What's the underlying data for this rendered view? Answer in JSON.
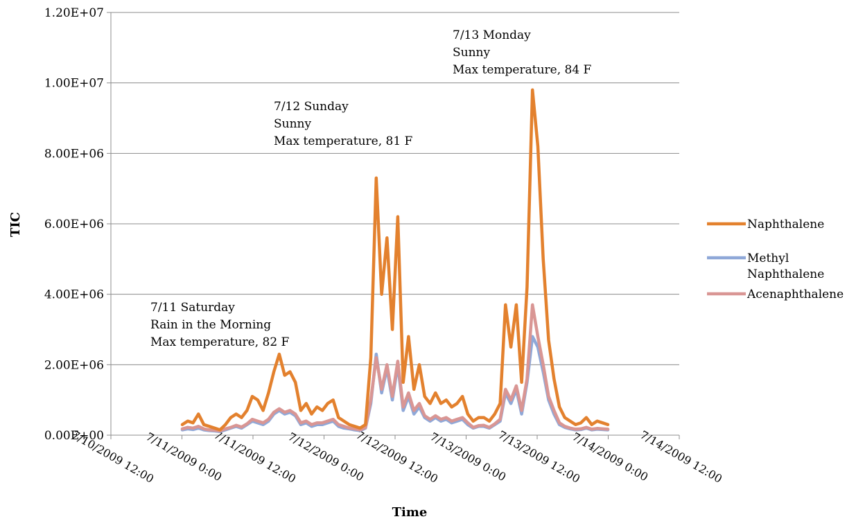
{
  "chart_data": {
    "type": "line",
    "title": "",
    "xlabel": "Time",
    "ylabel": "TIC",
    "ylim": [
      0,
      12000000
    ],
    "yticks": [
      "0.00E+00",
      "2.00E+06",
      "4.00E+06",
      "6.00E+06",
      "8.00E+06",
      "1.00E+07",
      "1.20E+07"
    ],
    "xticks": [
      "7/10/2009 12:00",
      "7/11/2009 0:00",
      "7/11/2009 12:00",
      "7/12/2009 0:00",
      "7/12/2009 12:00",
      "7/13/2009 0:00",
      "7/13/2009 12:00",
      "7/14/2009 0:00",
      "7/14/2009 12:00"
    ],
    "x_unit_note": "hours",
    "x": [
      0,
      1,
      2,
      3,
      4,
      5,
      6,
      7,
      8,
      9,
      10,
      11,
      12,
      13,
      14,
      15,
      16,
      17,
      18,
      19,
      20,
      21,
      22,
      23,
      24,
      25,
      26,
      27,
      28,
      29,
      30,
      31,
      32,
      33,
      34,
      35,
      36,
      37,
      38,
      39,
      40,
      41,
      42,
      43,
      44,
      45,
      46,
      47,
      48,
      49,
      50,
      51,
      52,
      53,
      54,
      55,
      56,
      57,
      58,
      59,
      60,
      61,
      62,
      63,
      64,
      65,
      66,
      67,
      68,
      69,
      70,
      71,
      72,
      73,
      74,
      75,
      76,
      77,
      78,
      79
    ],
    "series": [
      {
        "name": "Naphthalene",
        "color": "#E3812E",
        "values": [
          300000,
          400000,
          350000,
          600000,
          300000,
          250000,
          200000,
          150000,
          300000,
          500000,
          600000,
          500000,
          700000,
          1100000,
          1000000,
          700000,
          1200000,
          1800000,
          2300000,
          1700000,
          1800000,
          1500000,
          700000,
          900000,
          600000,
          800000,
          700000,
          900000,
          1000000,
          500000,
          400000,
          300000,
          250000,
          200000,
          300000,
          2200000,
          7300000,
          4000000,
          5600000,
          3000000,
          6200000,
          1500000,
          2800000,
          1300000,
          2000000,
          1100000,
          900000,
          1200000,
          900000,
          1000000,
          800000,
          900000,
          1100000,
          600000,
          400000,
          500000,
          500000,
          400000,
          600000,
          900000,
          3700000,
          2500000,
          3700000,
          1500000,
          4200000,
          9800000,
          8200000,
          5000000,
          2700000,
          1600000,
          800000,
          500000,
          400000,
          300000,
          350000,
          500000,
          300000,
          400000,
          350000,
          300000
        ]
      },
      {
        "name": "Methyl Naphthalene",
        "color": "#8FA8D8",
        "values": [
          150000,
          180000,
          160000,
          200000,
          150000,
          130000,
          120000,
          100000,
          150000,
          200000,
          250000,
          200000,
          300000,
          400000,
          350000,
          300000,
          400000,
          600000,
          700000,
          600000,
          650000,
          550000,
          300000,
          350000,
          250000,
          300000,
          300000,
          350000,
          400000,
          250000,
          200000,
          180000,
          150000,
          130000,
          200000,
          900000,
          2300000,
          1200000,
          1900000,
          1000000,
          2000000,
          700000,
          1100000,
          600000,
          800000,
          500000,
          400000,
          500000,
          400000,
          450000,
          350000,
          400000,
          450000,
          300000,
          200000,
          250000,
          250000,
          200000,
          300000,
          400000,
          1200000,
          900000,
          1300000,
          600000,
          1500000,
          2800000,
          2500000,
          1800000,
          1000000,
          600000,
          300000,
          220000,
          180000,
          150000,
          160000,
          200000,
          150000,
          170000,
          160000,
          150000
        ]
      },
      {
        "name": "Acenaphthalene",
        "color": "#D99694",
        "values": [
          180000,
          220000,
          200000,
          250000,
          180000,
          150000,
          140000,
          120000,
          180000,
          220000,
          280000,
          230000,
          320000,
          450000,
          400000,
          350000,
          450000,
          650000,
          750000,
          650000,
          700000,
          600000,
          350000,
          400000,
          300000,
          350000,
          350000,
          400000,
          450000,
          300000,
          250000,
          200000,
          180000,
          150000,
          220000,
          1000000,
          2200000,
          1300000,
          2000000,
          1100000,
          2100000,
          800000,
          1200000,
          700000,
          900000,
          550000,
          450000,
          550000,
          450000,
          500000,
          400000,
          450000,
          500000,
          350000,
          220000,
          270000,
          280000,
          220000,
          320000,
          450000,
          1300000,
          1000000,
          1400000,
          700000,
          1600000,
          3700000,
          2800000,
          2000000,
          1100000,
          700000,
          350000,
          250000,
          200000,
          170000,
          180000,
          220000,
          170000,
          190000,
          180000,
          170000
        ]
      }
    ],
    "annotations": [
      {
        "lines": [
          "7/11 Saturday",
          "Rain in the Morning",
          "Max temperature, 82 F"
        ]
      },
      {
        "lines": [
          "7/12 Sunday",
          "Sunny",
          "Max temperature, 81 F"
        ]
      },
      {
        "lines": [
          "7/13 Monday",
          "Sunny",
          "Max temperature, 84 F"
        ]
      }
    ],
    "legend": {
      "position": "right",
      "entries": [
        {
          "lines": [
            "Naphthalene"
          ],
          "color": "#E3812E"
        },
        {
          "lines": [
            "Methyl",
            "Naphthalene"
          ],
          "color": "#8FA8D8"
        },
        {
          "lines": [
            "Acenaphthalene"
          ],
          "color": "#D99694"
        }
      ]
    },
    "grid": true
  }
}
